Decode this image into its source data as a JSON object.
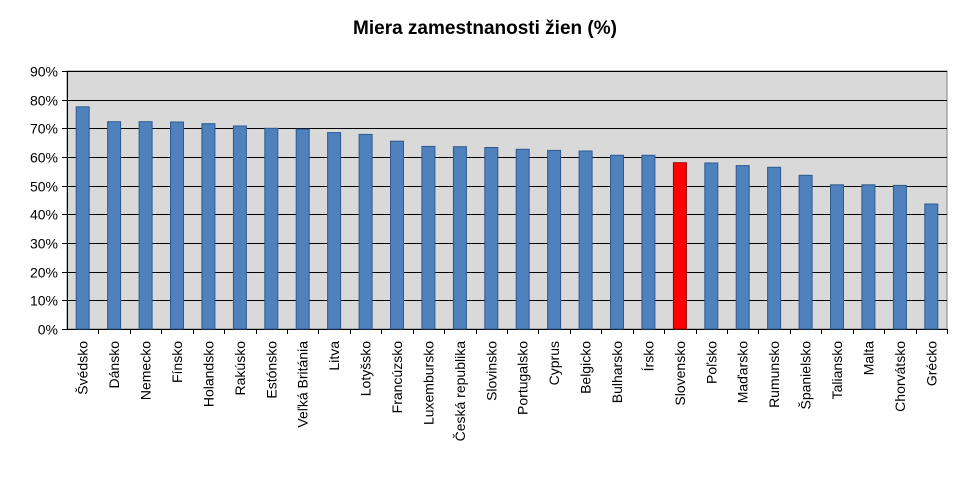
{
  "chart_data": {
    "type": "bar",
    "title": "Miera zamestnanosti žien (%)",
    "xlabel": "",
    "ylabel": "",
    "ylim": [
      0,
      90
    ],
    "yticks": [
      "0%",
      "10%",
      "20%",
      "30%",
      "40%",
      "50%",
      "60%",
      "70%",
      "80%",
      "90%"
    ],
    "grid": true,
    "categories": [
      "Švédsko",
      "Dánsko",
      "Nemecko",
      "Fínsko",
      "Holandsko",
      "Rakúsko",
      "Estónsko",
      "Veľká Británia",
      "Litva",
      "Lotyšsko",
      "Francúzsko",
      "Luxembursko",
      "Česká republika",
      "Slovinsko",
      "Portugalsko",
      "Cyprus",
      "Belgicko",
      "Bulharsko",
      "Írsko",
      "Slovensko",
      "Poľsko",
      "Maďarsko",
      "Rumunsko",
      "Španielsko",
      "Taliansko",
      "Malta",
      "Chorvátsko",
      "Grécko"
    ],
    "values": [
      77.5,
      72.3,
      72.3,
      72.2,
      71.6,
      70.8,
      70.0,
      69.7,
      68.5,
      67.9,
      65.5,
      63.7,
      63.6,
      63.3,
      62.7,
      62.3,
      62.1,
      60.6,
      60.6,
      58.0,
      57.9,
      57.0,
      56.4,
      53.6,
      50.3,
      50.3,
      50.1,
      43.6
    ],
    "colors": {
      "bar": "#4F81BD",
      "bar_edge": "#2E5A8E",
      "highlight": "#FF0000",
      "plot_background": "#D9D9D9",
      "gridline": "#000000"
    },
    "highlight_category": "Slovensko"
  }
}
